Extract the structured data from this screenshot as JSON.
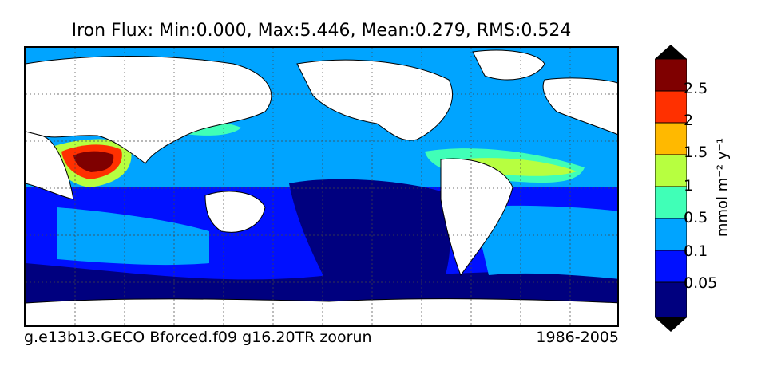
{
  "title": "Iron Flux: Min:0.000, Max:5.446, Mean:0.279, RMS:0.524",
  "footer": {
    "run_name": "g.e13b13.GECO Bforced.f09 g16.20TR zoorun",
    "period": "1986-2005"
  },
  "colorbar": {
    "units_label": "mmol m⁻² y⁻¹",
    "tick_labels": [
      "0.05",
      "0.1",
      "0.5",
      "1",
      "1.5",
      "2",
      "2.5"
    ],
    "colors": [
      "#00007f",
      "#0010ff",
      "#00a4ff",
      "#40ffb7",
      "#b7ff40",
      "#ffb900",
      "#ff3000",
      "#7f0000"
    ]
  },
  "map": {
    "land_color": "#ffffff",
    "coastline_color": "#000000",
    "gridline_style": "dotted"
  }
}
